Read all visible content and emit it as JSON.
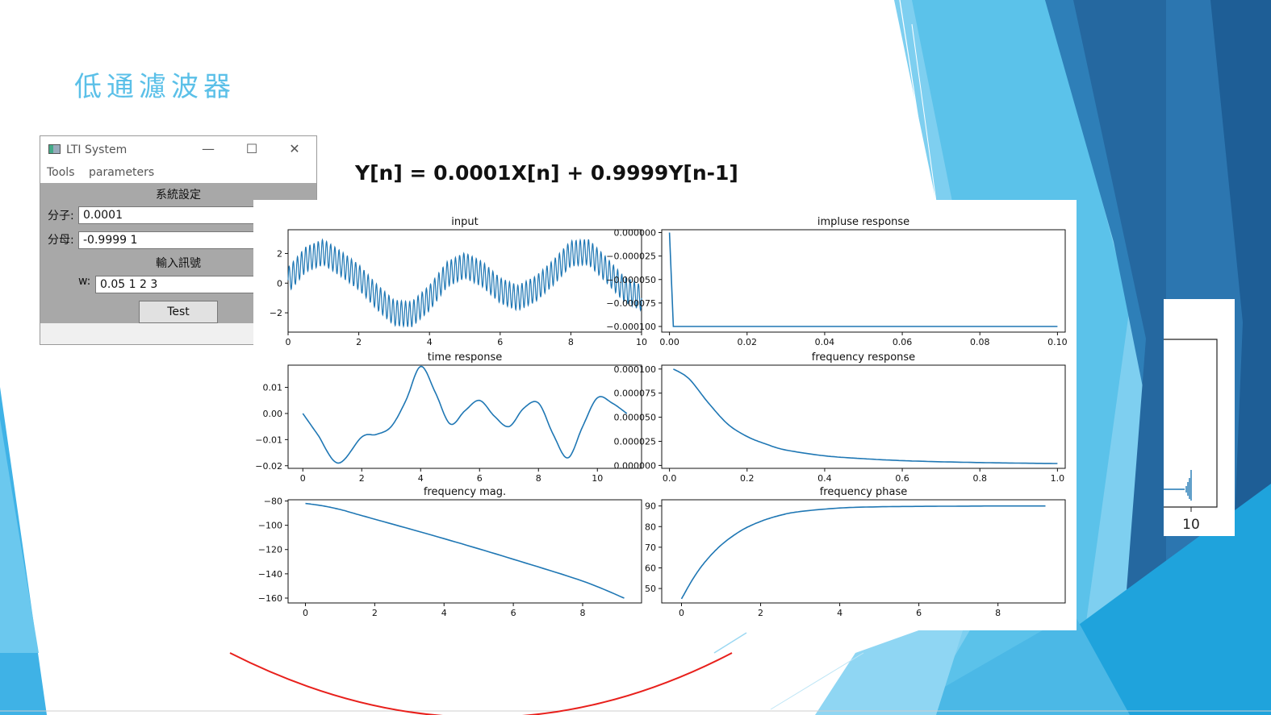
{
  "slide": {
    "title": "低通濾波器",
    "equation": "Y[n] = 0.0001X[n] + 0.9999Y[n-1]"
  },
  "window": {
    "title": "LTI System",
    "icon": "app-window-icon",
    "controls": {
      "minimize": "—",
      "maximize": "☐",
      "close": "✕"
    },
    "menu": [
      "Tools",
      "parameters"
    ],
    "system_section": "系統設定",
    "numerator_label": "分子:",
    "numerator_value": "0.0001",
    "denominator_label": "分母:",
    "denominator_value": "-0.9999 1",
    "input_section": "輸入訊號",
    "w_label": "w:",
    "w_value": "0.05 1 2 3",
    "test_button": "Test"
  },
  "peek_tick": "10",
  "colors": {
    "line": "#1f77b4",
    "title": "#5bc0e8",
    "arc": "#e8201c"
  },
  "chart_data": [
    {
      "type": "line",
      "title": "input",
      "xlim": [
        0,
        10
      ],
      "ylim": [
        -3.3,
        3.6
      ],
      "xticks": [
        "0",
        "2",
        "4",
        "6",
        "8",
        "10"
      ],
      "yticks": [
        "−2",
        "0",
        "2"
      ],
      "ytick_values": [
        -2,
        0,
        2
      ],
      "xtick_values": [
        0,
        2,
        4,
        6,
        8,
        10
      ],
      "formula": "sin(0.05 t)+sin(t)+sin(2t)+sin(3t)-like composite, fast ripple amplitude ~0.9",
      "envelope_x": [
        0,
        0.5,
        1,
        1.5,
        2,
        2.5,
        3,
        3.5,
        4,
        4.5,
        5,
        5.5,
        6,
        6.5,
        7,
        7.5,
        8,
        8.5,
        9,
        9.5,
        10
      ],
      "envelope_y": [
        0.2,
        1.6,
        2.1,
        1.3,
        0.4,
        -0.9,
        -2.0,
        -2.1,
        -1.0,
        0.6,
        1.2,
        0.6,
        -0.5,
        -1.0,
        -0.4,
        0.7,
        2.0,
        2.1,
        0.9,
        -0.4,
        -1.0
      ]
    },
    {
      "type": "line",
      "title": "impluse response",
      "xlim": [
        -0.002,
        0.102
      ],
      "ylim": [
        -0.000106,
        3e-06
      ],
      "xticks": [
        "0.00",
        "0.02",
        "0.04",
        "0.06",
        "0.08",
        "0.10"
      ],
      "xtick_values": [
        0,
        0.02,
        0.04,
        0.06,
        0.08,
        0.1
      ],
      "yticks": [
        "0.000000",
        "−0.000025",
        "−0.000050",
        "−0.000075",
        "−0.000100"
      ],
      "ytick_values": [
        0,
        -2.5e-05,
        -5e-05,
        -7.5e-05,
        -0.0001
      ],
      "x": [
        0,
        0.001,
        0.02,
        0.04,
        0.06,
        0.08,
        0.1
      ],
      "y": [
        0,
        -0.0001,
        -0.0001,
        -0.0001,
        -0.0001,
        -0.0001,
        -0.0001
      ]
    },
    {
      "type": "line",
      "title": "time response",
      "xlim": [
        -0.5,
        11.5
      ],
      "ylim": [
        -0.021,
        0.0185
      ],
      "xticks": [
        "0",
        "2",
        "4",
        "6",
        "8",
        "10"
      ],
      "xtick_values": [
        0,
        2,
        4,
        6,
        8,
        10
      ],
      "yticks": [
        "0.01",
        "0.00",
        "−0.01",
        "−0.02"
      ],
      "ytick_values": [
        0.01,
        0,
        -0.01,
        -0.02
      ],
      "x": [
        0,
        0.5,
        1.2,
        2,
        2.5,
        3,
        3.5,
        4,
        4.5,
        5,
        5.5,
        6,
        6.5,
        7,
        7.5,
        8,
        8.5,
        9,
        9.5,
        10,
        10.5,
        11
      ],
      "y": [
        0,
        -0.008,
        -0.019,
        -0.009,
        -0.008,
        -0.005,
        0.005,
        0.018,
        0.008,
        -0.004,
        0.001,
        0.005,
        -0.001,
        -0.005,
        0.002,
        0.004,
        -0.008,
        -0.017,
        -0.005,
        0.006,
        0.004,
        0
      ]
    },
    {
      "type": "line",
      "title": "frequency response",
      "xlim": [
        -0.02,
        1.02
      ],
      "ylim": [
        -3e-06,
        0.000104
      ],
      "xticks": [
        "0.0",
        "0.2",
        "0.4",
        "0.6",
        "0.8",
        "1.0"
      ],
      "xtick_values": [
        0,
        0.2,
        0.4,
        0.6,
        0.8,
        1.0
      ],
      "yticks": [
        "0.000100",
        "0.000075",
        "0.000050",
        "0.000025",
        "0.000000"
      ],
      "ytick_values": [
        0.0001,
        7.5e-05,
        5e-05,
        2.5e-05,
        0
      ],
      "x": [
        0.01,
        0.05,
        0.1,
        0.15,
        0.2,
        0.25,
        0.3,
        0.4,
        0.5,
        0.6,
        0.7,
        0.8,
        0.9,
        1.0
      ],
      "y": [
        0.0001,
        9e-05,
        6.5e-05,
        4.3e-05,
        3e-05,
        2.2e-05,
        1.6e-05,
        1e-05,
        7e-06,
        5e-06,
        3.8e-06,
        3e-06,
        2.4e-06,
        2e-06
      ]
    },
    {
      "type": "line",
      "title": "frequency mag.",
      "xlim": [
        -0.5,
        9.7
      ],
      "ylim": [
        -164,
        -79
      ],
      "xticks": [
        "0",
        "2",
        "4",
        "6",
        "8"
      ],
      "xtick_values": [
        0,
        2,
        4,
        6,
        8
      ],
      "yticks": [
        "−80",
        "−100",
        "−120",
        "−140",
        "−160"
      ],
      "ytick_values": [
        -80,
        -100,
        -120,
        -140,
        -160
      ],
      "x": [
        0,
        0.5,
        1,
        1.5,
        2,
        4,
        6,
        8,
        9.2
      ],
      "y": [
        -82,
        -84,
        -87,
        -91,
        -95,
        -111,
        -128,
        -146,
        -160
      ]
    },
    {
      "type": "line",
      "title": "frequency phase",
      "xlim": [
        -0.5,
        9.7
      ],
      "ylim": [
        43,
        93
      ],
      "xticks": [
        "0",
        "2",
        "4",
        "6",
        "8"
      ],
      "xtick_values": [
        0,
        2,
        4,
        6,
        8
      ],
      "yticks": [
        "90",
        "80",
        "70",
        "60",
        "50"
      ],
      "ytick_values": [
        90,
        80,
        70,
        60,
        50
      ],
      "x": [
        0,
        0.3,
        0.6,
        1,
        1.5,
        2,
        2.5,
        3,
        4,
        5,
        6,
        7,
        8,
        9.2
      ],
      "y": [
        45,
        55,
        63,
        71,
        78,
        82.5,
        85.5,
        87.3,
        89,
        89.6,
        89.8,
        89.9,
        90,
        90
      ]
    }
  ]
}
